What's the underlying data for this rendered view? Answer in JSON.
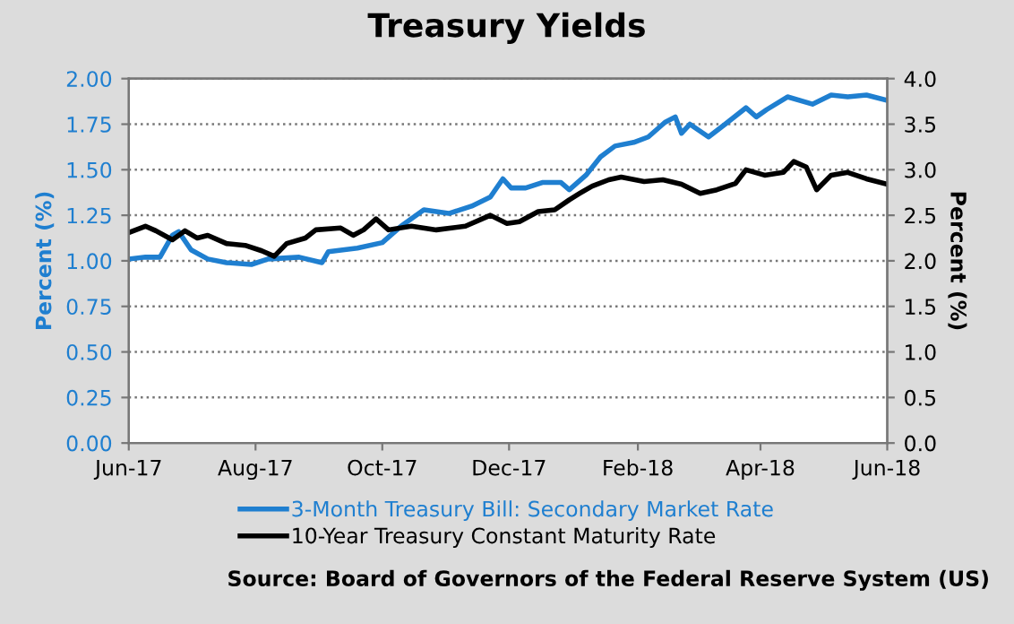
{
  "chart_data": {
    "type": "line",
    "title": "Treasury Yields",
    "ylabel": "Percent (%)",
    "y2label": "Percent (%)",
    "annotations": [
      "Source: Board of Governors of the Federal Reserve System (US)"
    ],
    "xlim": [
      "2017-06-01",
      "2018-06-01"
    ],
    "xticks": [
      {
        "value": "2017-06-01",
        "label": "Jun-17"
      },
      {
        "value": "2017-08-01",
        "label": "Aug-17"
      },
      {
        "value": "2017-10-01",
        "label": "Oct-17"
      },
      {
        "value": "2017-12-01",
        "label": "Dec-17"
      },
      {
        "value": "2018-02-01",
        "label": "Feb-18"
      },
      {
        "value": "2018-04-01",
        "label": "Apr-18"
      },
      {
        "value": "2018-06-01",
        "label": "Jun-18"
      }
    ],
    "ylim": [
      0,
      2
    ],
    "yticks": [
      {
        "value": 0,
        "label": "0.00"
      },
      {
        "value": 0.25,
        "label": "0.25"
      },
      {
        "value": 0.5,
        "label": "0.50"
      },
      {
        "value": 0.75,
        "label": "0.75"
      },
      {
        "value": 1,
        "label": "1.00"
      },
      {
        "value": 1.25,
        "label": "1.25"
      },
      {
        "value": 1.5,
        "label": "1.50"
      },
      {
        "value": 1.75,
        "label": "1.75"
      },
      {
        "value": 2,
        "label": "2.00"
      }
    ],
    "y2lim": [
      0,
      4
    ],
    "y2ticks": [
      {
        "value": 0,
        "label": "0.0"
      },
      {
        "value": 0.5,
        "label": "0.5"
      },
      {
        "value": 1,
        "label": "1.0"
      },
      {
        "value": 1.5,
        "label": "1.5"
      },
      {
        "value": 2,
        "label": "2.0"
      },
      {
        "value": 2.5,
        "label": "2.5"
      },
      {
        "value": 3,
        "label": "3.0"
      },
      {
        "value": 3.5,
        "label": "3.5"
      },
      {
        "value": 4,
        "label": "4.0"
      }
    ],
    "grid": "y",
    "legend": "bottom",
    "series": [
      {
        "name": "3-Month Treasury Bill: Secondary Market Rate",
        "color": "#1f7fd0",
        "x": [
          "2017-06-01",
          "2017-06-09",
          "2017-06-16",
          "2017-06-22",
          "2017-06-25",
          "2017-07-01",
          "2017-07-09",
          "2017-07-18",
          "2017-07-30",
          "2017-08-07",
          "2017-08-22",
          "2017-09-02",
          "2017-09-05",
          "2017-09-19",
          "2017-10-01",
          "2017-10-10",
          "2017-10-21",
          "2017-11-02",
          "2017-11-13",
          "2017-11-22",
          "2017-11-28",
          "2017-12-02",
          "2017-12-09",
          "2017-12-17",
          "2017-12-26",
          "2017-12-30",
          "2018-01-07",
          "2018-01-14",
          "2018-01-21",
          "2018-01-30",
          "2018-02-06",
          "2018-02-14",
          "2018-02-19",
          "2018-02-22",
          "2018-02-26",
          "2018-03-07",
          "2018-03-15",
          "2018-03-25",
          "2018-03-30",
          "2018-04-04",
          "2018-04-14",
          "2018-04-26",
          "2018-05-05",
          "2018-05-13",
          "2018-05-22",
          "2018-06-01"
        ],
        "values": [
          1.01,
          1.02,
          1.02,
          1.14,
          1.16,
          1.06,
          1.01,
          0.99,
          0.98,
          1.01,
          1.02,
          0.99,
          1.05,
          1.07,
          1.1,
          1.19,
          1.28,
          1.26,
          1.3,
          1.35,
          1.45,
          1.4,
          1.4,
          1.43,
          1.43,
          1.39,
          1.47,
          1.57,
          1.63,
          1.65,
          1.68,
          1.76,
          1.79,
          1.7,
          1.75,
          1.68,
          1.75,
          1.84,
          1.79,
          1.83,
          1.9,
          1.86,
          1.91,
          1.9,
          1.91,
          1.88
        ]
      },
      {
        "name": "10-Year Treasury Constant Maturity Rate",
        "color": "#000000",
        "axis": "y2",
        "x": [
          "2017-06-01",
          "2017-06-09",
          "2017-06-14",
          "2017-06-22",
          "2017-06-28",
          "2017-07-04",
          "2017-07-09",
          "2017-07-18",
          "2017-07-27",
          "2017-08-04",
          "2017-08-10",
          "2017-08-16",
          "2017-08-25",
          "2017-08-30",
          "2017-09-11",
          "2017-09-17",
          "2017-09-22",
          "2017-09-28",
          "2017-10-04",
          "2017-10-15",
          "2017-10-27",
          "2017-11-10",
          "2017-11-22",
          "2017-11-30",
          "2017-12-06",
          "2017-12-15",
          "2017-12-23",
          "2017-12-30",
          "2018-01-04",
          "2018-01-10",
          "2018-01-18",
          "2018-01-24",
          "2018-02-04",
          "2018-02-13",
          "2018-02-22",
          "2018-03-03",
          "2018-03-11",
          "2018-03-20",
          "2018-03-25",
          "2018-04-03",
          "2018-04-12",
          "2018-04-17",
          "2018-04-23",
          "2018-04-28",
          "2018-05-05",
          "2018-05-13",
          "2018-05-22",
          "2018-06-01"
        ],
        "values": [
          2.31,
          2.38,
          2.33,
          2.23,
          2.33,
          2.25,
          2.28,
          2.19,
          2.17,
          2.11,
          2.05,
          2.19,
          2.25,
          2.34,
          2.36,
          2.28,
          2.34,
          2.46,
          2.34,
          2.38,
          2.34,
          2.38,
          2.5,
          2.41,
          2.43,
          2.54,
          2.56,
          2.67,
          2.74,
          2.82,
          2.89,
          2.92,
          2.87,
          2.89,
          2.84,
          2.74,
          2.78,
          2.85,
          3.0,
          2.94,
          2.97,
          3.09,
          3.03,
          2.78,
          2.94,
          2.97,
          2.9,
          2.84
        ]
      }
    ]
  }
}
